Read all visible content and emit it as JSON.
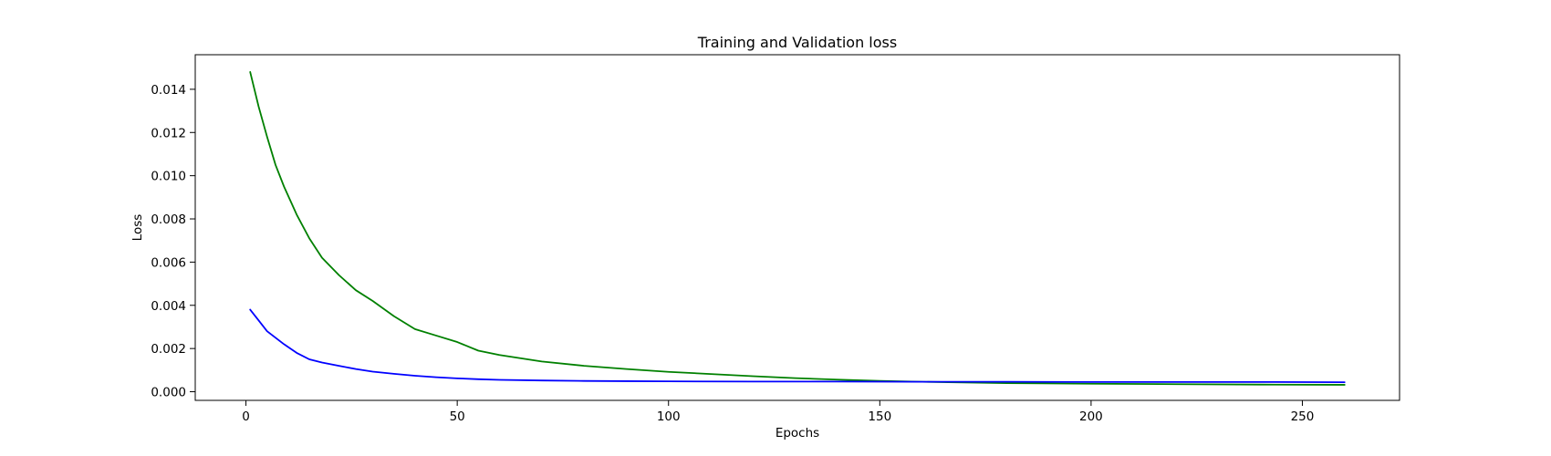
{
  "chart_data": {
    "type": "line",
    "title": "Training and Validation loss",
    "xlabel": "Epochs",
    "ylabel": "Loss",
    "xlim": [
      -12,
      273
    ],
    "ylim": [
      -0.0004,
      0.0156
    ],
    "xticks": [
      0,
      50,
      100,
      150,
      200,
      250
    ],
    "xtick_labels": [
      "0",
      "50",
      "100",
      "150",
      "200",
      "250"
    ],
    "yticks": [
      0.0,
      0.002,
      0.004,
      0.006,
      0.008,
      0.01,
      0.012,
      0.014
    ],
    "ytick_labels": [
      "0.000",
      "0.002",
      "0.004",
      "0.006",
      "0.008",
      "0.010",
      "0.012",
      "0.014"
    ],
    "grid": false,
    "series": [
      {
        "color": "#008000",
        "x": [
          1,
          3,
          5,
          7,
          9,
          12,
          15,
          18,
          22,
          26,
          30,
          35,
          40,
          45,
          50,
          55,
          60,
          70,
          80,
          90,
          100,
          110,
          120,
          130,
          140,
          150,
          160,
          180,
          200,
          220,
          240,
          260
        ],
        "y": [
          0.0148,
          0.0132,
          0.0118,
          0.0105,
          0.0095,
          0.0082,
          0.0071,
          0.0062,
          0.0054,
          0.0047,
          0.0042,
          0.0035,
          0.0029,
          0.0026,
          0.0023,
          0.0019,
          0.0017,
          0.0014,
          0.0012,
          0.00105,
          0.00092,
          0.00082,
          0.00072,
          0.00063,
          0.00056,
          0.0005,
          0.00046,
          0.0004,
          0.00037,
          0.00035,
          0.00033,
          0.00032
        ]
      },
      {
        "color": "#0000ff",
        "x": [
          1,
          3,
          5,
          7,
          9,
          12,
          15,
          18,
          22,
          26,
          30,
          35,
          40,
          45,
          50,
          55,
          60,
          70,
          80,
          90,
          100,
          120,
          140,
          160,
          180,
          200,
          220,
          240,
          260
        ],
        "y": [
          0.0038,
          0.0033,
          0.0028,
          0.0025,
          0.0022,
          0.0018,
          0.0015,
          0.00135,
          0.0012,
          0.00105,
          0.00093,
          0.00083,
          0.00074,
          0.00067,
          0.00062,
          0.00058,
          0.00055,
          0.00052,
          0.0005,
          0.00049,
          0.00048,
          0.00047,
          0.00047,
          0.00046,
          0.00046,
          0.00045,
          0.00045,
          0.00045,
          0.00044
        ]
      }
    ]
  }
}
